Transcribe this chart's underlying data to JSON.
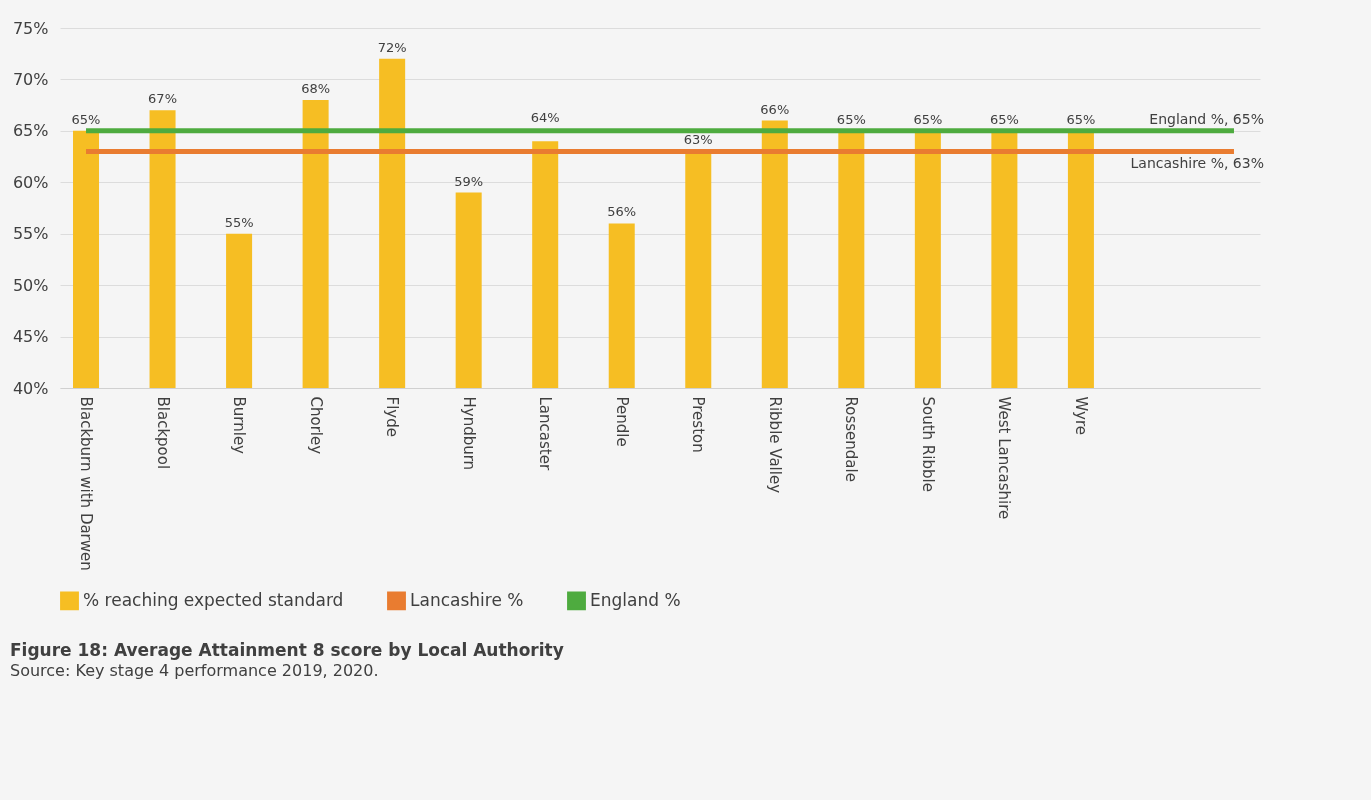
{
  "chart_data": {
    "type": "bar",
    "title": "Figure 18: Average Attainment 8 score by Local Authority",
    "annotations": [
      "Source: Key stage 4 performance 2019, 2020."
    ],
    "categories": [
      "Blackburn with Darwen",
      "Blackpool",
      "Burnley",
      "Chorley",
      "Flyde",
      "Hyndburn",
      "Lancaster",
      "Pendle",
      "Preston",
      "Ribble Valley",
      "Rossendale",
      "South Ribble",
      "West Lancashire",
      "Wyre",
      null,
      null
    ],
    "series": [
      {
        "name": "% reaching expected standard",
        "color": "#f6be23",
        "values": [
          65,
          67,
          55,
          68,
          72,
          59,
          64,
          56,
          63,
          66,
          65,
          65,
          65,
          65,
          null,
          null
        ],
        "value_labels": [
          "65%",
          "67%",
          "55%",
          "68%",
          "72%",
          "59%",
          "64%",
          "56%",
          "63%",
          "66%",
          "65%",
          "65%",
          "65%",
          "65%",
          null,
          null
        ]
      },
      {
        "name": "Lancashire %",
        "type": "line",
        "color": "#e97c30",
        "values": [
          63,
          63,
          63,
          63,
          63,
          63,
          63,
          63,
          63,
          63,
          63,
          63,
          63,
          63,
          63,
          63
        ],
        "value_labels": [
          null,
          null,
          null,
          null,
          null,
          null,
          null,
          null,
          null,
          null,
          null,
          null,
          null,
          null,
          null,
          "Lancashire %, 63%"
        ]
      },
      {
        "name": "England %",
        "type": "line",
        "color": "#4eab3f",
        "values": [
          65,
          65,
          65,
          65,
          65,
          65,
          65,
          65,
          65,
          65,
          65,
          65,
          65,
          65,
          65,
          65
        ],
        "value_labels": [
          null,
          null,
          null,
          null,
          null,
          null,
          null,
          null,
          null,
          null,
          null,
          null,
          null,
          null,
          null,
          "England %, 65%"
        ]
      }
    ],
    "ylim": [
      40,
      75
    ],
    "yticks": [
      {
        "value": 40,
        "label": "40%"
      },
      {
        "value": 45,
        "label": "45%"
      },
      {
        "value": 50,
        "label": "50%"
      },
      {
        "value": 55,
        "label": "55%"
      },
      {
        "value": 60,
        "label": "60%"
      },
      {
        "value": 65,
        "label": "65%"
      },
      {
        "value": 70,
        "label": "70%"
      },
      {
        "value": 75,
        "label": "75%"
      }
    ],
    "grid": "y",
    "legend": "bottom"
  }
}
